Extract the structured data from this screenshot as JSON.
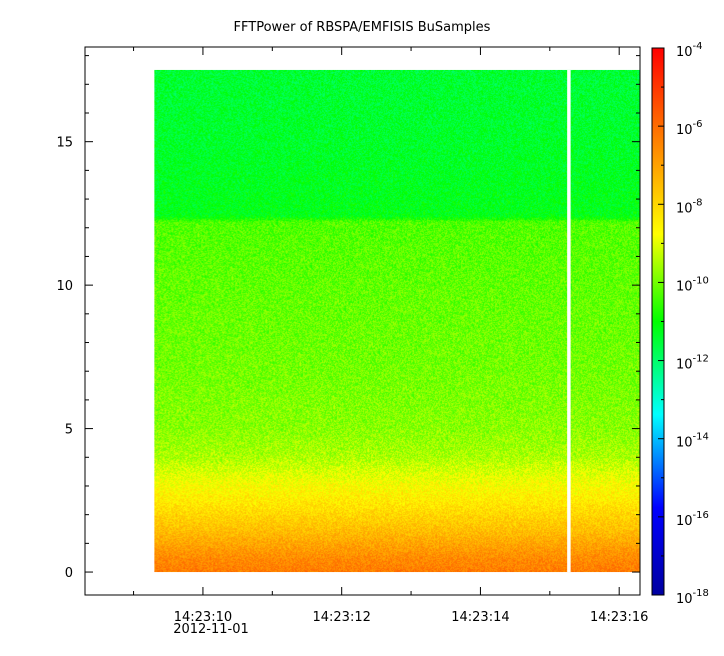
{
  "chart_data": {
    "type": "heatmap",
    "title": "FFTPower of RBSPA/EMFISIS  BuSamples",
    "xlabel": "",
    "ylabel": "",
    "x_axis": {
      "kind": "time",
      "date_label": "2012-11-01",
      "range": [
        "14:23:08.3",
        "14:23:16.3"
      ],
      "ticks": [
        "14:23:10",
        "14:23:12",
        "14:23:14",
        "14:23:16"
      ],
      "minor_tick_interval_s": 1
    },
    "y_axis": {
      "range": [
        -0.8,
        18.3
      ],
      "ticks": [
        0,
        5,
        10,
        15
      ],
      "tick_labels": [
        "0",
        "5",
        "10",
        "15"
      ],
      "minor_tick_interval": 1
    },
    "colorbar": {
      "scale": "log",
      "range": [
        1e-18,
        0.0001
      ],
      "colormap": [
        "#0000a0",
        "#0000ff",
        "#00ffff",
        "#00ff00",
        "#ffff00",
        "#ff8000",
        "#ff0000"
      ],
      "ticks": [
        {
          "base": "10",
          "exp": "-4"
        },
        {
          "base": "10",
          "exp": "-6"
        },
        {
          "base": "10",
          "exp": "-8"
        },
        {
          "base": "10",
          "exp": "-10"
        },
        {
          "base": "10",
          "exp": "-12"
        },
        {
          "base": "10",
          "exp": "-14"
        },
        {
          "base": "10",
          "exp": "-16"
        },
        {
          "base": "10",
          "exp": "-18"
        }
      ]
    },
    "data_extent": {
      "x_start": "14:23:09.3",
      "x_end": "14:23:16.3",
      "y_min": 0.0,
      "y_max": 17.5
    },
    "data_gap": {
      "x_start": "14:23:15.25",
      "x_end": "14:23:15.3"
    },
    "power_profile_log10": [
      {
        "y": 0.0,
        "value": -6.3
      },
      {
        "y": 0.5,
        "value": -6.6
      },
      {
        "y": 1.0,
        "value": -7.1
      },
      {
        "y": 1.5,
        "value": -7.6
      },
      {
        "y": 2.0,
        "value": -8.0
      },
      {
        "y": 2.5,
        "value": -8.4
      },
      {
        "y": 3.0,
        "value": -8.7
      },
      {
        "y": 3.5,
        "value": -9.1
      },
      {
        "y": 4.0,
        "value": -9.5
      },
      {
        "y": 5.0,
        "value": -9.8
      },
      {
        "y": 7.0,
        "value": -10.0
      },
      {
        "y": 9.0,
        "value": -10.1
      },
      {
        "y": 12.2,
        "value": -10.3
      },
      {
        "y": 12.4,
        "value": -11.2
      },
      {
        "y": 15.0,
        "value": -11.4
      },
      {
        "y": 17.5,
        "value": -11.5
      }
    ],
    "grid": false,
    "legend": "none"
  }
}
